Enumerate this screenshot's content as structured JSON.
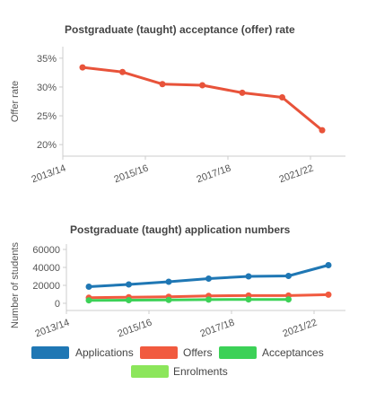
{
  "chart_data": [
    {
      "type": "line",
      "title": "Postgraduate (taught) acceptance (offer) rate",
      "xlabel": "",
      "ylabel": "Offer rate",
      "x_tick_labels": [
        "2013/14",
        "2015/16",
        "2017/18",
        "2021/22"
      ],
      "y_tick_labels": [
        "20%",
        "25%",
        "30%",
        "35%"
      ],
      "ylim": [
        18,
        37
      ],
      "grid": false,
      "series": [
        {
          "color": "#e8533a",
          "x": [
            0,
            1,
            2,
            3,
            4,
            5,
            6
          ],
          "values": [
            33.4,
            32.6,
            30.5,
            30.3,
            29.0,
            28.2,
            22.5
          ]
        }
      ]
    },
    {
      "type": "line",
      "title": "Postgraduate (taught) application numbers",
      "xlabel": "",
      "ylabel": "Number of students",
      "x_tick_labels": [
        "2013/14",
        "2015/16",
        "2017/18",
        "2021/22"
      ],
      "y_tick_labels": [
        "0",
        "20000",
        "40000",
        "60000"
      ],
      "ylim": [
        -8000,
        66000
      ],
      "grid": false,
      "legend_position": "bottom",
      "series": [
        {
          "name": "Applications",
          "color": "#1f77b4",
          "x": [
            0,
            1,
            2,
            3,
            4,
            5,
            6
          ],
          "values": [
            18500,
            21000,
            24000,
            27500,
            30000,
            30500,
            42500
          ]
        },
        {
          "name": "Offers",
          "color": "#f15a3f",
          "x": [
            0,
            1,
            2,
            3,
            4,
            5,
            6
          ],
          "values": [
            6200,
            6800,
            7300,
            8300,
            8600,
            8600,
            9600
          ]
        },
        {
          "name": "Acceptances",
          "color": "#3cd157",
          "x": [
            0,
            1,
            2,
            3,
            4,
            5
          ],
          "values": [
            3300,
            3500,
            3700,
            4100,
            4300,
            4300
          ]
        },
        {
          "name": "Enrolments",
          "color": "#8ce65b",
          "x": [],
          "values": []
        }
      ]
    }
  ]
}
